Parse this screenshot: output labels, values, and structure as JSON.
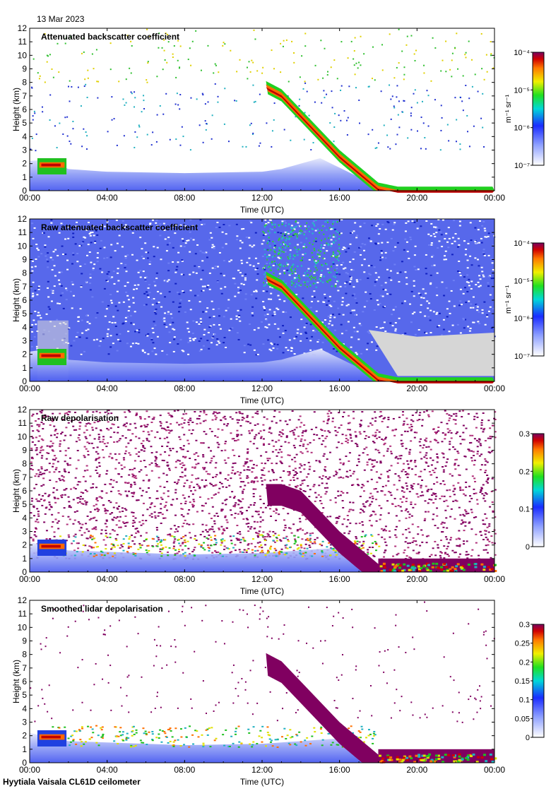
{
  "header": {
    "date": "13 Mar 2023"
  },
  "footer": {
    "site": "Hyytiala Vaisala CL61D ceilometer"
  },
  "chart_data": [
    {
      "type": "heatmap",
      "title": "Attenuated backscatter coefficient",
      "xlabel": "Time (UTC)",
      "ylabel": "Height (km)",
      "x_ticks": [
        "00:00",
        "04:00",
        "08:00",
        "12:00",
        "16:00",
        "20:00",
        "00:00"
      ],
      "y_ticks": [
        0,
        1,
        2,
        3,
        4,
        5,
        6,
        7,
        8,
        9,
        10,
        11,
        12
      ],
      "xlim_hours": [
        0,
        24
      ],
      "ylim": [
        0,
        12
      ],
      "colorbar": {
        "scale": "log",
        "ticks": [
          "10⁻⁷",
          "10⁻⁶",
          "10⁻⁵",
          "10⁻⁴"
        ],
        "label": "m⁻¹ sr⁻¹"
      },
      "layer_top_km": [
        [
          0,
          2.2
        ],
        [
          1,
          2.3
        ],
        [
          2,
          1.6
        ],
        [
          4,
          1.4
        ],
        [
          8,
          1.3
        ],
        [
          12,
          1.4
        ],
        [
          13,
          1.6
        ],
        [
          15,
          2.4
        ],
        [
          17,
          1.0
        ],
        [
          18,
          0.4
        ],
        [
          20,
          0.3
        ],
        [
          24,
          0.3
        ]
      ],
      "cloud_top_km": [
        [
          12.2,
          8.1
        ],
        [
          13,
          7.5
        ],
        [
          14,
          6.0
        ],
        [
          15,
          4.5
        ],
        [
          16,
          3.0
        ],
        [
          17,
          1.8
        ],
        [
          18,
          0.6
        ],
        [
          19,
          0.3
        ],
        [
          24,
          0.3
        ]
      ]
    },
    {
      "type": "heatmap",
      "title": "Raw attenuated backscatter coefficient",
      "xlabel": "Time (UTC)",
      "ylabel": "Height (km)",
      "x_ticks": [
        "00:00",
        "04:00",
        "08:00",
        "12:00",
        "16:00",
        "20:00",
        "00:00"
      ],
      "y_ticks": [
        0,
        1,
        2,
        3,
        4,
        5,
        6,
        7,
        8,
        9,
        10,
        11,
        12
      ],
      "xlim_hours": [
        0,
        24
      ],
      "ylim": [
        0,
        12
      ],
      "colorbar": {
        "scale": "log",
        "ticks": [
          "10⁻⁷",
          "10⁻⁶",
          "10⁻⁵",
          "10⁻⁴"
        ],
        "label": "m⁻¹ sr⁻¹"
      },
      "layer_top_km": [
        [
          0,
          2.2
        ],
        [
          1,
          2.4
        ],
        [
          2,
          1.6
        ],
        [
          4,
          1.4
        ],
        [
          8,
          1.3
        ],
        [
          12,
          1.4
        ],
        [
          13,
          1.6
        ],
        [
          15,
          2.4
        ],
        [
          17,
          1.0
        ],
        [
          18,
          0.4
        ],
        [
          20,
          0.3
        ],
        [
          24,
          0.3
        ]
      ],
      "cloud_top_km": [
        [
          12.2,
          8.1
        ],
        [
          13,
          7.5
        ],
        [
          14,
          6.0
        ],
        [
          15,
          4.5
        ],
        [
          16,
          3.0
        ],
        [
          17,
          1.8
        ],
        [
          18,
          0.6
        ],
        [
          19,
          0.3
        ],
        [
          24,
          0.3
        ]
      ]
    },
    {
      "type": "heatmap",
      "title": "Raw depolarisation",
      "xlabel": "Time (UTC)",
      "ylabel": "Height (km)",
      "x_ticks": [
        "00:00",
        "04:00",
        "08:00",
        "12:00",
        "16:00",
        "20:00",
        "00:00"
      ],
      "y_ticks": [
        0,
        1,
        2,
        3,
        4,
        5,
        6,
        7,
        8,
        9,
        10,
        11,
        12
      ],
      "xlim_hours": [
        0,
        24
      ],
      "ylim": [
        0,
        12
      ],
      "colorbar": {
        "scale": "linear",
        "ticks": [
          "0",
          "0.1",
          "0.2",
          "0.3"
        ]
      },
      "cloud_top_km": [
        [
          12.2,
          6.5
        ],
        [
          13,
          6.5
        ],
        [
          14,
          6.0
        ],
        [
          15,
          4.5
        ],
        [
          16,
          3.0
        ],
        [
          17,
          1.8
        ],
        [
          18,
          0.6
        ],
        [
          19,
          0.4
        ],
        [
          24,
          0.4
        ]
      ]
    },
    {
      "type": "heatmap",
      "title": "Smoothed lidar depolarisation",
      "xlabel": "Time (UTC)",
      "ylabel": "Height (km)",
      "x_ticks": [
        "00:00",
        "04:00",
        "08:00",
        "12:00",
        "16:00",
        "20:00",
        "00:00"
      ],
      "y_ticks": [
        0,
        1,
        2,
        3,
        4,
        5,
        6,
        7,
        8,
        9,
        10,
        11,
        12
      ],
      "xlim_hours": [
        0,
        24
      ],
      "ylim": [
        0,
        12
      ],
      "colorbar": {
        "scale": "linear",
        "ticks": [
          "0",
          "0.05",
          "0.1",
          "0.15",
          "0.2",
          "0.25",
          "0.3"
        ]
      },
      "cloud_top_km": [
        [
          12.2,
          8.1
        ],
        [
          13,
          7.5
        ],
        [
          14,
          6.0
        ],
        [
          15,
          4.5
        ],
        [
          16,
          3.0
        ],
        [
          17,
          1.8
        ],
        [
          18,
          0.6
        ],
        [
          19,
          0.4
        ],
        [
          24,
          0.4
        ]
      ]
    }
  ]
}
